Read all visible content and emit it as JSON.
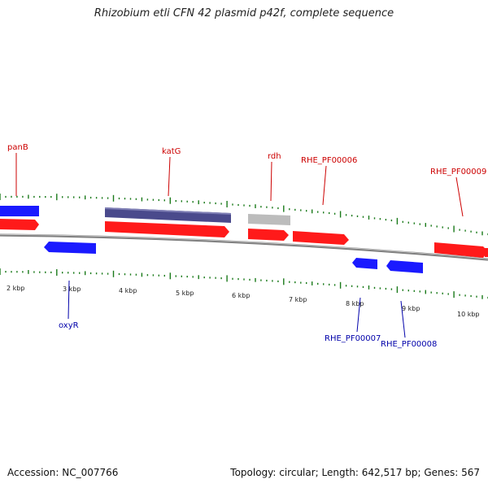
{
  "title": "Rhizobium etli CFN 42 plasmid p42f, complete sequence",
  "footer": {
    "accession": "Accession: NC_007766",
    "summary": "Topology: circular; Length: 642,517 bp; Genes: 567"
  },
  "colors": {
    "forward_gene": "#ff1a1a",
    "reverse_gene": "#1a1aff",
    "katG_feature": "#4a4a8c",
    "rdh_feature": "#bcbcbc",
    "forward_label": "#cc0000",
    "reverse_label": "#0000aa",
    "tick": "#1a7a1a",
    "backbone": "#808080"
  },
  "scale_labels": [
    "2 kbp",
    "3 kbp",
    "4 kbp",
    "5 kbp",
    "6 kbp",
    "7 kbp",
    "8 kbp",
    "9 kbp",
    "10 kbp"
  ],
  "labels": {
    "forward": [
      "panB",
      "katG",
      "rdh",
      "RHE_PF00006",
      "RHE_PF00009"
    ],
    "reverse": [
      "oxyR",
      "RHE_PF00007",
      "RHE_PF00008"
    ]
  }
}
